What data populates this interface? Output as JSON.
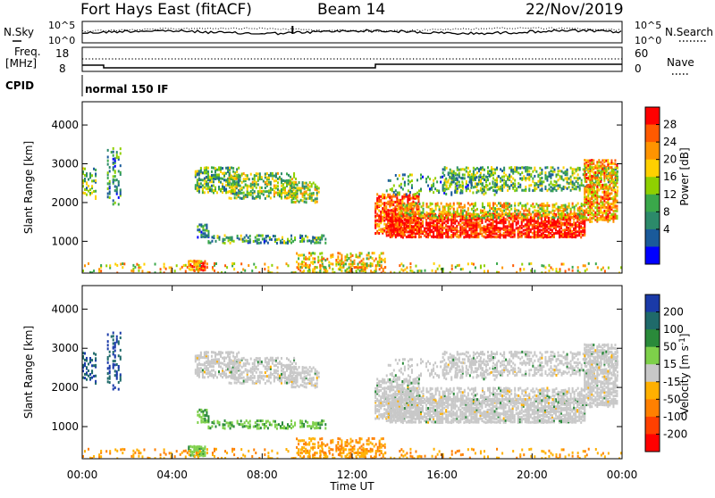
{
  "header": {
    "station": "Fort Hays East (fitACF)",
    "beam": "Beam 14",
    "date": "22/Nov/2019"
  },
  "noise_panel": {
    "left_label": "N.Sky",
    "right_label": "N.Search",
    "left_ticks": [
      "10^5",
      "10^0"
    ],
    "right_ticks": [
      "10^5",
      "10^0"
    ]
  },
  "freq_panel": {
    "left_label": "Freq.",
    "left_unit": "[MHz]",
    "right_label": "Nave",
    "left_ticks": [
      "18",
      "8"
    ],
    "right_ticks": [
      "60",
      "0"
    ],
    "cpid_label": "CPID",
    "cpid_value": "normal 150 IF"
  },
  "power_colorbar": {
    "label": "Power [dB]",
    "ticks": [
      "28",
      "24",
      "20",
      "16",
      "12",
      "8",
      "4"
    ],
    "colors": [
      "#ff0000",
      "#ff5a00",
      "#ff9400",
      "#ffd000",
      "#8fd000",
      "#3aa84a",
      "#2c8a6a",
      "#1a5a9a",
      "#0000ff"
    ]
  },
  "velocity_colorbar": {
    "label": "Velocity [m s",
    "label_sup": "-1",
    "label_end": "]",
    "ticks": [
      "200",
      "100",
      "50",
      "15",
      "-15",
      "-50",
      "-100",
      "-200"
    ],
    "colors": [
      "#1a3aa8",
      "#1f6a6a",
      "#2a8a3a",
      "#7ed04a",
      "#c8c8c8",
      "#ffb000",
      "#ff8000",
      "#ff4000",
      "#ff0000"
    ]
  },
  "chart_data": [
    {
      "type": "heatmap",
      "title": "Power",
      "ylabel": "Slant Range [km]",
      "ylim": [
        180,
        4600
      ],
      "yticks": [
        "4000",
        "3000",
        "2000",
        "1000"
      ],
      "colorbar_label": "Power [dB]",
      "colorbar_ticks": [
        28,
        24,
        20,
        16,
        12,
        8,
        4
      ]
    },
    {
      "type": "heatmap",
      "title": "Velocity",
      "ylabel": "Slant Range [km]",
      "ylim": [
        180,
        4600
      ],
      "yticks": [
        "4000",
        "3000",
        "2000",
        "1000"
      ],
      "xlabel": "Time UT",
      "xticks": [
        "00:00",
        "04:00",
        "08:00",
        "12:00",
        "16:00",
        "20:00",
        "00:00"
      ],
      "colorbar_label": "Velocity [m s-1]",
      "colorbar_ticks": [
        200,
        100,
        50,
        15,
        -15,
        -50,
        -100,
        -200
      ]
    }
  ]
}
